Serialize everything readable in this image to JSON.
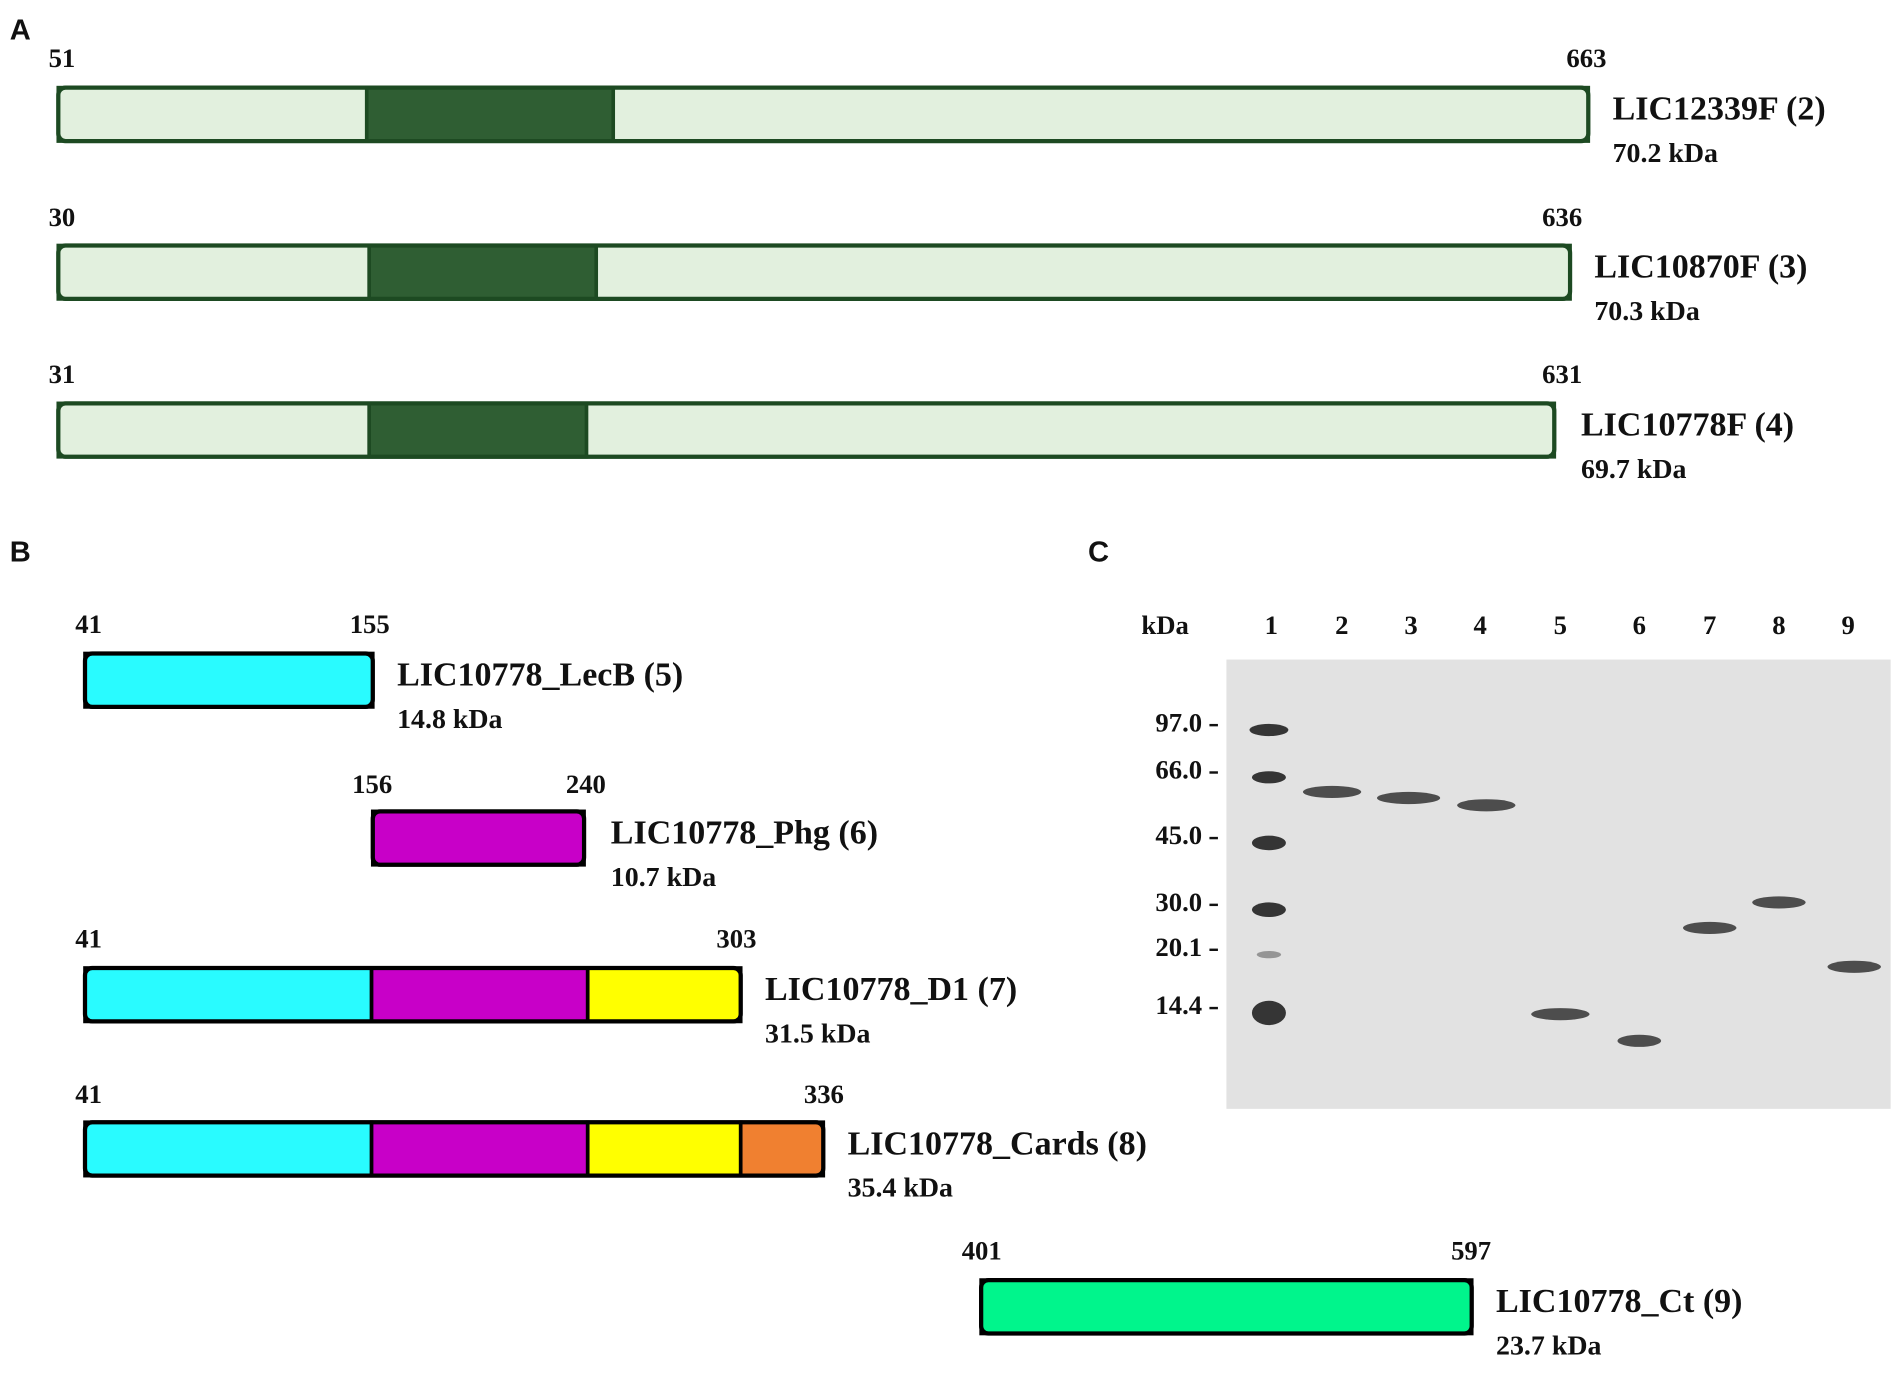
{
  "panel_a": {
    "label": "A",
    "constructs": [
      {
        "start": "51",
        "end": "663",
        "name": "LIC12339F (2)",
        "mass": "70.2 kDa"
      },
      {
        "start": "30",
        "end": "636",
        "name": "LIC10870F (3)",
        "mass": "70.3 kDa"
      },
      {
        "start": "31",
        "end": "631",
        "name": "LIC10778F (4)",
        "mass": "69.7 kDa"
      }
    ]
  },
  "panel_b": {
    "label": "B",
    "constructs": [
      {
        "start": "41",
        "end": "155",
        "name": "LIC10778_LecB (5)",
        "mass": "14.8 kDa"
      },
      {
        "start": "156",
        "end": "240",
        "name": "LIC10778_Phg (6)",
        "mass": "10.7 kDa"
      },
      {
        "start": "41",
        "end": "303",
        "name": "LIC10778_D1 (7)",
        "mass": "31.5 kDa"
      },
      {
        "start": "41",
        "end": "336",
        "name": "LIC10778_Cards (8)",
        "mass": "35.4 kDa"
      },
      {
        "start": "401",
        "end": "597",
        "name": "LIC10778_Ct (9)",
        "mass": "23.7 kDa"
      }
    ]
  },
  "panel_c": {
    "label": "C",
    "unit": "kDa",
    "lanes": [
      "1",
      "2",
      "3",
      "4",
      "5",
      "6",
      "7",
      "8",
      "9"
    ],
    "markers": [
      "97.0",
      "66.0",
      "45.0",
      "30.0",
      "20.1",
      "14.4"
    ]
  }
}
